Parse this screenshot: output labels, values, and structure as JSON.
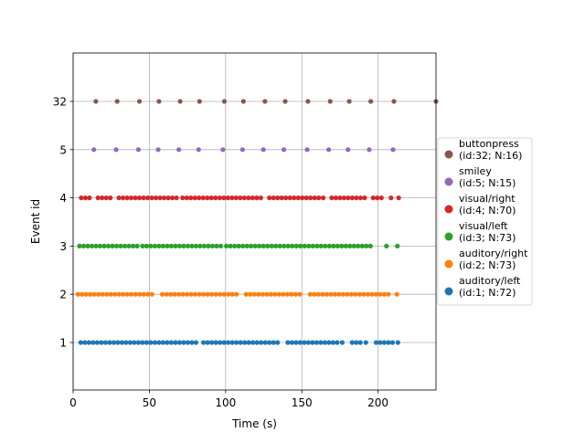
{
  "chart_data": {
    "type": "scatter",
    "title": "",
    "xlabel": "Time (s)",
    "ylabel": "Event id",
    "xlim": [
      0,
      238
    ],
    "x_ticks": [
      0,
      50,
      100,
      150,
      200
    ],
    "y_categories": [
      "1",
      "2",
      "3",
      "4",
      "5",
      "32"
    ],
    "grid": true,
    "legend_placement": "right, outside plot",
    "series": [
      {
        "name": "buttonpress\n(id:32; N:16)",
        "category": "32",
        "color": "#8c564b",
        "x": [
          14.9,
          28.9,
          43.5,
          56.3,
          70.2,
          82.9,
          99.2,
          111.7,
          125.8,
          139.1,
          154.0,
          168.6,
          181.1,
          195.2,
          210.4,
          238.0
        ]
      },
      {
        "name": "smiley\n(id:5; N:15)",
        "category": "5",
        "color": "#9467bd",
        "x": [
          13.6,
          28.2,
          42.8,
          55.8,
          69.3,
          82.3,
          98.2,
          111.1,
          124.8,
          138.2,
          153.5,
          167.6,
          180.3,
          194.2,
          209.8
        ]
      },
      {
        "name": "visual/right\n(id:4; N:70)",
        "category": "4",
        "color": "#d62728",
        "x": [
          5.3,
          8.0,
          10.7,
          16.3,
          19.0,
          21.7,
          24.4,
          30.0,
          32.7,
          35.4,
          38.1,
          40.8,
          43.5,
          46.2,
          48.9,
          51.6,
          54.3,
          57.0,
          59.7,
          62.4,
          65.1,
          67.8,
          71.8,
          74.5,
          77.2,
          79.9,
          82.6,
          85.3,
          88.0,
          90.7,
          93.4,
          96.1,
          98.8,
          101.5,
          104.2,
          106.9,
          109.6,
          112.3,
          115.0,
          117.7,
          120.4,
          123.1,
          128.7,
          131.4,
          134.1,
          136.8,
          139.5,
          142.2,
          144.9,
          147.6,
          150.3,
          153.0,
          155.7,
          158.4,
          161.1,
          164.0,
          169.6,
          172.3,
          175.0,
          177.7,
          180.4,
          183.1,
          185.8,
          188.5,
          191.2,
          196.8,
          199.5,
          202.2,
          208.5,
          213.5
        ]
      },
      {
        "name": "visual/left\n(id:3; N:73)",
        "category": "3",
        "color": "#2ca02c",
        "x": [
          4.2,
          6.9,
          9.6,
          12.3,
          15.0,
          17.7,
          20.4,
          23.1,
          25.8,
          28.5,
          31.2,
          33.9,
          36.6,
          39.3,
          42.0,
          45.5,
          48.2,
          50.9,
          53.6,
          56.3,
          59.0,
          61.7,
          64.4,
          67.1,
          69.8,
          72.5,
          75.2,
          77.9,
          80.6,
          83.3,
          86.0,
          88.7,
          91.4,
          94.1,
          96.8,
          100.5,
          103.2,
          105.9,
          108.6,
          111.3,
          114.0,
          116.7,
          119.4,
          122.1,
          124.8,
          127.5,
          130.2,
          132.9,
          135.6,
          138.3,
          141.0,
          143.7,
          146.4,
          149.1,
          151.8,
          154.5,
          157.2,
          159.9,
          162.6,
          165.3,
          168.0,
          170.7,
          173.4,
          176.1,
          178.8,
          181.5,
          184.2,
          186.9,
          189.6,
          192.3,
          195.0,
          205.5,
          212.7
        ]
      },
      {
        "name": "auditory/right\n(id:2; N:73)",
        "category": "2",
        "color": "#ff7f0e",
        "x": [
          3.1,
          5.8,
          8.5,
          11.2,
          13.9,
          16.6,
          19.3,
          22.0,
          24.7,
          27.4,
          30.1,
          32.8,
          35.5,
          38.2,
          40.9,
          43.6,
          46.3,
          49.0,
          51.7,
          58.5,
          61.2,
          63.9,
          66.6,
          69.3,
          72.0,
          74.7,
          77.4,
          80.1,
          82.8,
          85.5,
          88.2,
          90.9,
          93.6,
          96.3,
          99.0,
          101.7,
          104.4,
          107.1,
          113.5,
          116.2,
          118.9,
          121.6,
          124.3,
          127.0,
          129.7,
          132.4,
          135.1,
          137.8,
          140.5,
          143.2,
          145.9,
          148.6,
          155.5,
          158.2,
          160.9,
          163.6,
          166.3,
          169.0,
          171.7,
          174.4,
          177.1,
          179.8,
          182.5,
          185.2,
          187.9,
          190.6,
          193.3,
          196.0,
          198.7,
          201.4,
          204.1,
          206.8,
          212.3
        ]
      },
      {
        "name": "auditory/left\n(id:1; N:72)",
        "category": "1",
        "color": "#1f77b4",
        "x": [
          5.0,
          7.7,
          10.4,
          13.1,
          15.8,
          18.5,
          21.2,
          23.9,
          26.6,
          29.3,
          32.0,
          34.7,
          37.4,
          40.1,
          42.8,
          45.5,
          48.2,
          50.9,
          53.6,
          56.3,
          59.0,
          61.7,
          64.4,
          67.1,
          69.8,
          72.5,
          75.2,
          77.9,
          80.6,
          85.5,
          88.2,
          90.9,
          93.6,
          96.3,
          99.0,
          101.7,
          104.4,
          107.1,
          109.8,
          112.5,
          115.2,
          117.9,
          120.6,
          123.3,
          126.0,
          128.7,
          131.4,
          134.1,
          140.8,
          143.5,
          146.2,
          148.9,
          151.6,
          154.3,
          157.0,
          159.7,
          162.4,
          165.1,
          167.8,
          170.5,
          173.2,
          176.5,
          183.0,
          185.7,
          188.4,
          192.0,
          198.7,
          201.4,
          204.1,
          206.8,
          209.5,
          213.0
        ]
      }
    ]
  }
}
